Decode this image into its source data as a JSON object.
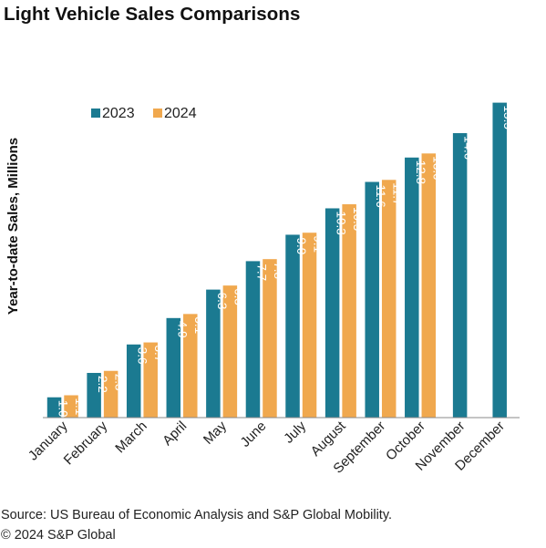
{
  "chart_data": {
    "type": "bar",
    "title": "Light Vehicle Sales Comparisons",
    "ylabel": "Year-to-date Sales, Millions",
    "xlabel": "",
    "ylim": [
      0,
      16.2
    ],
    "grid": false,
    "legend_position": "top-left",
    "categories": [
      "January",
      "February",
      "March",
      "April",
      "May",
      "June",
      "July",
      "August",
      "September",
      "October",
      "November",
      "December"
    ],
    "series": [
      {
        "name": "2023",
        "color": "#1b7a91",
        "values": [
          1.0,
          2.2,
          3.6,
          4.9,
          6.3,
          7.7,
          9.0,
          10.3,
          11.6,
          12.8,
          14.0,
          15.5
        ],
        "labels": [
          "1.0",
          "2.2",
          "3.6",
          "4.9",
          "6.3",
          "7.7",
          "9.0",
          "10.3",
          "11.6",
          "12.8",
          "14.0",
          "15.5"
        ]
      },
      {
        "name": "2024",
        "color": "#f0a84e",
        "values": [
          1.1,
          2.3,
          3.7,
          5.1,
          6.5,
          7.8,
          9.1,
          10.5,
          11.7,
          13.0,
          null,
          null
        ],
        "labels": [
          "1.1",
          "2.3",
          "3.7",
          "5.1",
          "6.5",
          "7.8",
          "9.1",
          "10.5",
          "11.7",
          "13.0",
          "",
          ""
        ]
      }
    ]
  },
  "footer": {
    "source": "Source: US Bureau of Economic Analysis and S&P Global Mobility.",
    "copyright": "© 2024 S&P Global"
  }
}
